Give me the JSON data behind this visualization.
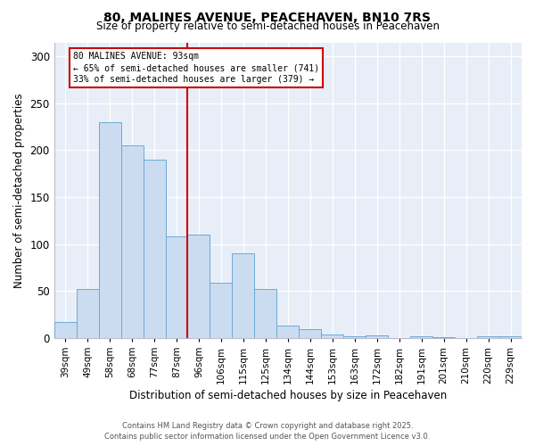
{
  "title": "80, MALINES AVENUE, PEACEHAVEN, BN10 7RS",
  "subtitle": "Size of property relative to semi-detached houses in Peacehaven",
  "xlabel": "Distribution of semi-detached houses by size in Peacehaven",
  "ylabel": "Number of semi-detached properties",
  "categories": [
    "39sqm",
    "49sqm",
    "58sqm",
    "68sqm",
    "77sqm",
    "87sqm",
    "96sqm",
    "106sqm",
    "115sqm",
    "125sqm",
    "134sqm",
    "144sqm",
    "153sqm",
    "163sqm",
    "172sqm",
    "182sqm",
    "191sqm",
    "201sqm",
    "210sqm",
    "220sqm",
    "229sqm"
  ],
  "values": [
    17,
    52,
    230,
    205,
    190,
    108,
    110,
    59,
    90,
    52,
    13,
    9,
    4,
    2,
    3,
    0,
    2,
    1,
    0,
    2,
    2
  ],
  "bar_color": "#ccdcf0",
  "bar_edge_color": "#6aaad4",
  "vline_color": "#cc0000",
  "vline_position": 5.5,
  "annotation_title": "80 MALINES AVENUE: 93sqm",
  "annotation_line1": "← 65% of semi-detached houses are smaller (741)",
  "annotation_line2": "33% of semi-detached houses are larger (379) →",
  "annotation_box_edgecolor": "#cc0000",
  "ylim": [
    0,
    315
  ],
  "yticks": [
    0,
    50,
    100,
    150,
    200,
    250,
    300
  ],
  "bg_color": "#ffffff",
  "plot_bg_color": "#e8eef8",
  "grid_color": "#ffffff",
  "footer1": "Contains HM Land Registry data © Crown copyright and database right 2025.",
  "footer2": "Contains public sector information licensed under the Open Government Licence v3.0."
}
